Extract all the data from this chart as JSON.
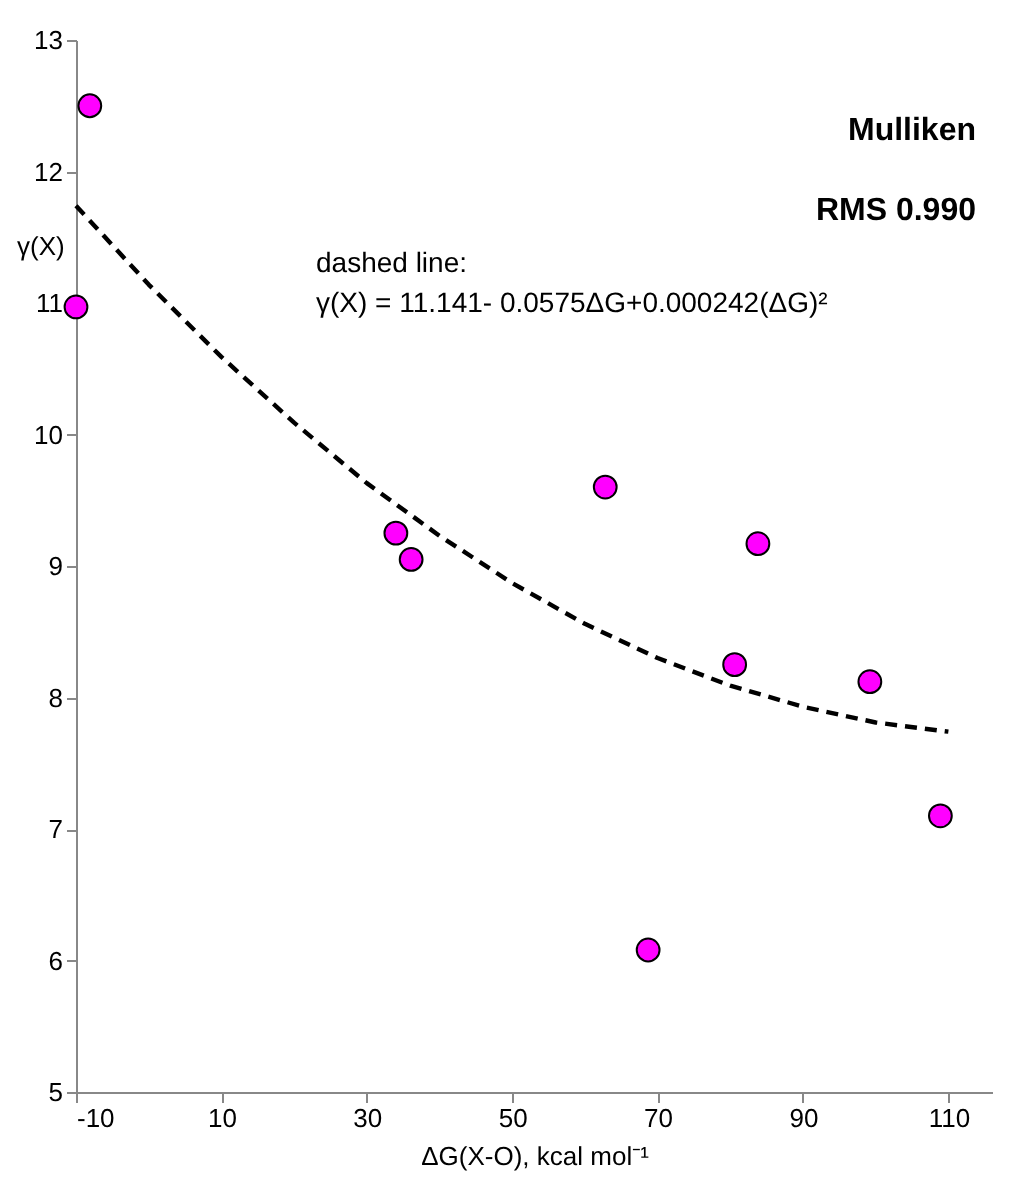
{
  "chart_data": {
    "type": "scatter",
    "xlabel": "ΔG(X-O), kcal mol⁻¹",
    "ylabel": "γ(X)",
    "xlim": [
      -10,
      116
    ],
    "xticks": [
      -10,
      10,
      30,
      50,
      70,
      90,
      110
    ],
    "ylim": [
      5,
      13
    ],
    "yticks": [
      5,
      6,
      7,
      8,
      9,
      10,
      11,
      12,
      13
    ],
    "grid": false,
    "annotations": [
      "Mulliken",
      "RMS 0.990",
      "dashed line:",
      "γ(X) = 11.141- 0.0575ΔG+0.000242(ΔG)²"
    ],
    "series": [
      {
        "marker": "circle",
        "color": "#ff00ff",
        "x": [
          -8.1,
          -10,
          34,
          36.1,
          62.8,
          83.8,
          80.6,
          99.2,
          108.9,
          68.7
        ],
        "values": [
          12.5,
          10.97,
          9.25,
          9.05,
          9.6,
          9.17,
          8.25,
          8.12,
          7.1,
          6.08
        ]
      },
      {
        "type": "line",
        "color": "#000000",
        "line_style": "dashed",
        "x": [
          -10,
          0,
          10,
          20,
          30,
          40,
          50,
          60,
          70,
          80,
          90,
          100,
          110
        ],
        "values": [
          11.74,
          11.14,
          10.59,
          10.09,
          9.63,
          9.23,
          8.87,
          8.56,
          8.3,
          8.09,
          7.93,
          7.81,
          7.74
        ]
      }
    ]
  }
}
